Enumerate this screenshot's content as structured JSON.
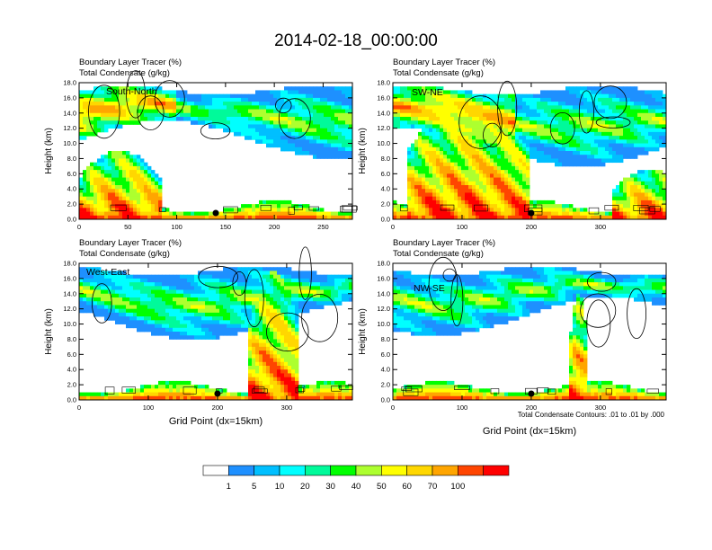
{
  "title": "2014-02-18_00:00:00",
  "panel_title_line1": "Boundary Layer Tracer   (%)",
  "panel_title_line2": "Total Condensate   (g/kg)",
  "ylabel": "Height (km)",
  "xlabel": "Grid Point (dx=15km)",
  "contour_note": "Total Condensate Contours: .01 to .01 by .000",
  "colorbar": {
    "colors": [
      "#ffffff",
      "#1e90ff",
      "#00bfff",
      "#00ffff",
      "#00fa9a",
      "#00ff00",
      "#adff2f",
      "#ffff00",
      "#ffd700",
      "#ffa500",
      "#ff4500",
      "#ff0000"
    ],
    "labels": [
      "1",
      "5",
      "10",
      "20",
      "30",
      "40",
      "50",
      "60",
      "70",
      "100"
    ]
  },
  "chart_data": [
    {
      "type": "heatmap",
      "panel": "South-North",
      "xlabel": "",
      "ylabel": "Height (km)",
      "xlim": [
        0,
        280
      ],
      "ylim": [
        0,
        18
      ],
      "xticks": [
        0,
        50,
        100,
        150,
        200,
        250
      ],
      "yticks": [
        "0.0",
        "2.0",
        "4.0",
        "6.0",
        "8.0",
        "10.0",
        "12.0",
        "14.0",
        "16.0",
        "18.0"
      ],
      "marker_x": 140
    },
    {
      "type": "heatmap",
      "panel": "SW-NE",
      "xlabel": "",
      "ylabel": "Height (km)",
      "xlim": [
        0,
        395
      ],
      "ylim": [
        0,
        18
      ],
      "xticks": [
        0,
        100,
        200,
        300
      ],
      "yticks": [
        "0.0",
        "2.0",
        "4.0",
        "6.0",
        "8.0",
        "10.0",
        "12.0",
        "14.0",
        "16.0",
        "18.0"
      ],
      "marker_x": 200
    },
    {
      "type": "heatmap",
      "panel": "West-East",
      "xlabel": "Grid Point (dx=15km)",
      "ylabel": "Height (km)",
      "xlim": [
        0,
        395
      ],
      "ylim": [
        0,
        18
      ],
      "xticks": [
        0,
        100,
        200,
        300
      ],
      "yticks": [
        "0.0",
        "2.0",
        "4.0",
        "6.0",
        "8.0",
        "10.0",
        "12.0",
        "14.0",
        "16.0",
        "18.0"
      ],
      "marker_x": 200
    },
    {
      "type": "heatmap",
      "panel": "NW-SE",
      "xlabel": "Grid Point (dx=15km)",
      "ylabel": "Height (km)",
      "xlim": [
        0,
        395
      ],
      "ylim": [
        0,
        18
      ],
      "xticks": [
        0,
        100,
        200,
        300
      ],
      "yticks": [
        "0.0",
        "2.0",
        "4.0",
        "6.0",
        "8.0",
        "10.0",
        "12.0",
        "14.0",
        "16.0",
        "18.0"
      ],
      "marker_x": 200
    }
  ]
}
